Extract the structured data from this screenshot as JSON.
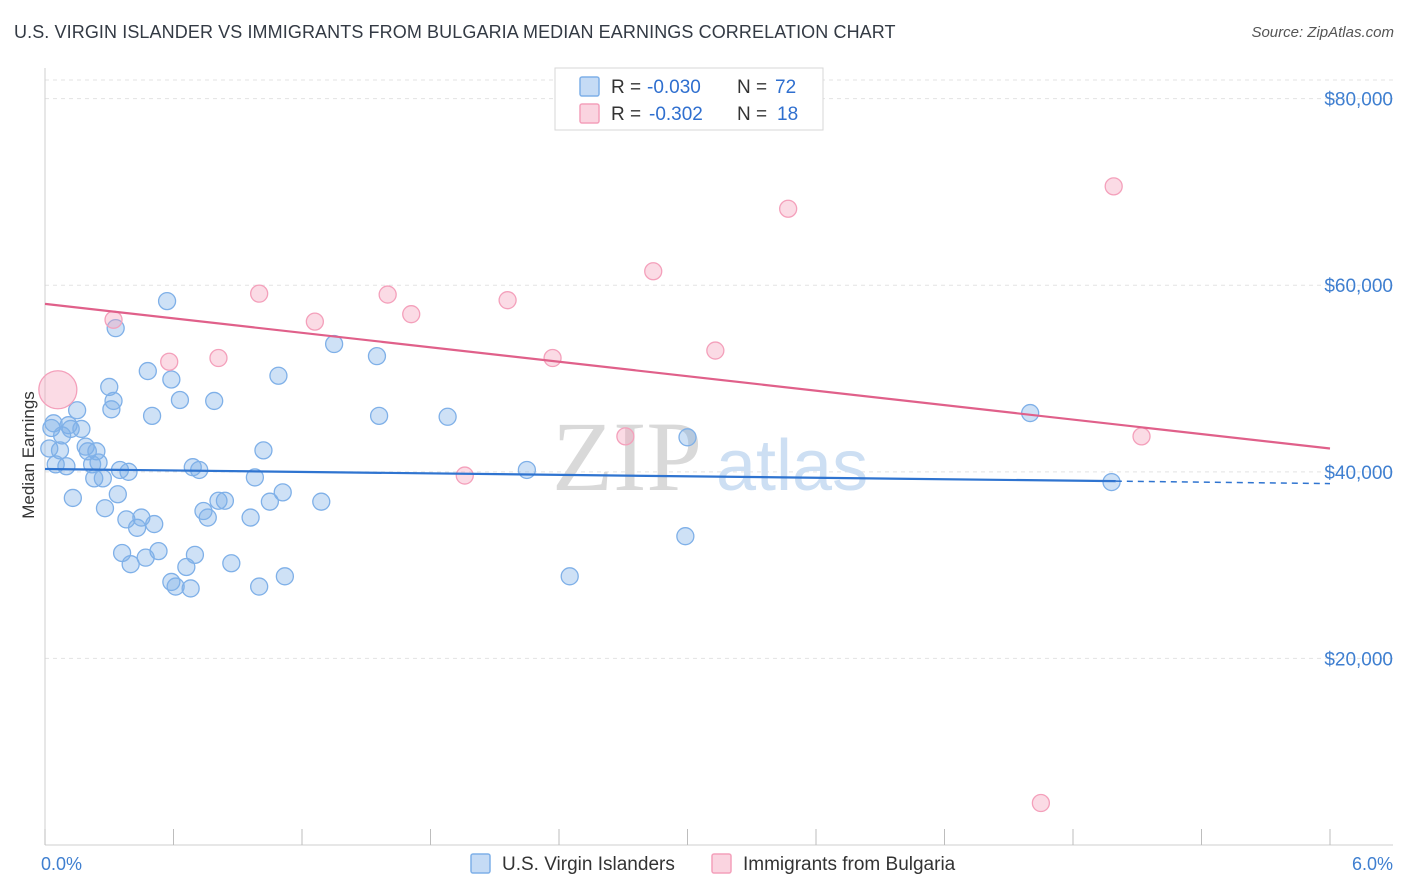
{
  "header": {
    "title": "U.S. VIRGIN ISLANDER VS IMMIGRANTS FROM BULGARIA MEDIAN EARNINGS CORRELATION CHART",
    "source": "Source: ZipAtlas.com"
  },
  "watermark": {
    "zip": "ZIP",
    "atlas": "atlas"
  },
  "legend_top": [
    {
      "r_label": "R =",
      "r_value": "-0.030",
      "n_label": "N =",
      "n_value": "72",
      "color": "#7fb0e8"
    },
    {
      "r_label": "R =",
      "r_value": "-0.302",
      "n_label": "N =",
      "n_value": "18",
      "color": "#f4a0bb"
    }
  ],
  "legend_bottom": [
    {
      "label": "U.S. Virgin Islanders",
      "color": "#7fb0e8"
    },
    {
      "label": "Immigrants from Bulgaria",
      "color": "#f4a0bb"
    }
  ],
  "chart_data": {
    "type": "scatter",
    "ylabel": "Median Earnings",
    "xlim": [
      0,
      6
    ],
    "ylim": [
      0,
      82000
    ],
    "x_tick_labels": [
      "0.0%",
      "6.0%"
    ],
    "y_ticks": [
      {
        "value": 20000,
        "label": "$20,000"
      },
      {
        "value": 40000,
        "label": "$40,000"
      },
      {
        "value": 60000,
        "label": "$60,000"
      },
      {
        "value": 80000,
        "label": "$80,000"
      }
    ],
    "grid": true,
    "series": [
      {
        "name": "U.S. Virgin Islanders",
        "color": "#7fb0e8",
        "line_color": "#2f74d0",
        "trend": {
          "x0": 0.0,
          "y0": 40300,
          "x1": 5.0,
          "y1": 39000,
          "dash_to_x": 6.0
        },
        "points": [
          [
            0.02,
            42500
          ],
          [
            0.03,
            44700
          ],
          [
            0.04,
            45200
          ],
          [
            0.05,
            40800
          ],
          [
            0.07,
            42300
          ],
          [
            0.08,
            43900
          ],
          [
            0.1,
            40600
          ],
          [
            0.11,
            45000
          ],
          [
            0.12,
            44600
          ],
          [
            0.13,
            37200
          ],
          [
            0.15,
            46600
          ],
          [
            0.17,
            44600
          ],
          [
            0.19,
            42700
          ],
          [
            0.2,
            42200
          ],
          [
            0.22,
            40800
          ],
          [
            0.23,
            39300
          ],
          [
            0.24,
            42200
          ],
          [
            0.25,
            41000
          ],
          [
            0.27,
            39300
          ],
          [
            0.28,
            36100
          ],
          [
            0.3,
            49100
          ],
          [
            0.31,
            46700
          ],
          [
            0.32,
            47600
          ],
          [
            0.33,
            55400
          ],
          [
            0.34,
            37600
          ],
          [
            0.35,
            40200
          ],
          [
            0.36,
            31300
          ],
          [
            0.38,
            34900
          ],
          [
            0.39,
            40000
          ],
          [
            0.4,
            30100
          ],
          [
            0.43,
            34000
          ],
          [
            0.45,
            35100
          ],
          [
            0.47,
            30800
          ],
          [
            0.48,
            50800
          ],
          [
            0.5,
            46000
          ],
          [
            0.51,
            34400
          ],
          [
            0.53,
            31500
          ],
          [
            0.57,
            58300
          ],
          [
            0.59,
            49900
          ],
          [
            0.59,
            28200
          ],
          [
            0.61,
            27700
          ],
          [
            0.63,
            47700
          ],
          [
            0.66,
            29800
          ],
          [
            0.68,
            27500
          ],
          [
            0.69,
            40500
          ],
          [
            0.7,
            31100
          ],
          [
            0.72,
            40200
          ],
          [
            0.74,
            35800
          ],
          [
            0.76,
            35100
          ],
          [
            0.79,
            47600
          ],
          [
            0.81,
            36900
          ],
          [
            0.84,
            36900
          ],
          [
            0.87,
            30200
          ],
          [
            0.96,
            35100
          ],
          [
            0.98,
            39400
          ],
          [
            1.0,
            27700
          ],
          [
            1.02,
            42300
          ],
          [
            1.05,
            36800
          ],
          [
            1.09,
            50300
          ],
          [
            1.11,
            37800
          ],
          [
            1.12,
            28800
          ],
          [
            1.29,
            36800
          ],
          [
            1.35,
            53700
          ],
          [
            1.55,
            52400
          ],
          [
            1.56,
            46000
          ],
          [
            1.88,
            45900
          ],
          [
            2.25,
            40200
          ],
          [
            2.45,
            28800
          ],
          [
            2.99,
            33100
          ],
          [
            3.0,
            43700
          ],
          [
            4.6,
            46300
          ],
          [
            4.98,
            38900
          ]
        ]
      },
      {
        "name": "Immigrants from Bulgaria",
        "color": "#f4a0bb",
        "line_color": "#e0608a",
        "trend": {
          "x0": 0.0,
          "y0": 58000,
          "x1": 6.0,
          "y1": 42500
        },
        "points": [
          [
            0.06,
            48800
          ],
          [
            0.32,
            56300
          ],
          [
            0.58,
            51800
          ],
          [
            0.81,
            52200
          ],
          [
            1.0,
            59100
          ],
          [
            1.26,
            56100
          ],
          [
            1.6,
            59000
          ],
          [
            1.71,
            56900
          ],
          [
            1.96,
            39600
          ],
          [
            2.16,
            58400
          ],
          [
            2.37,
            52200
          ],
          [
            2.71,
            43800
          ],
          [
            2.84,
            61500
          ],
          [
            3.13,
            53000
          ],
          [
            3.47,
            68200
          ],
          [
            4.65,
            4500
          ],
          [
            4.99,
            70600
          ],
          [
            5.12,
            43800
          ]
        ]
      }
    ]
  }
}
